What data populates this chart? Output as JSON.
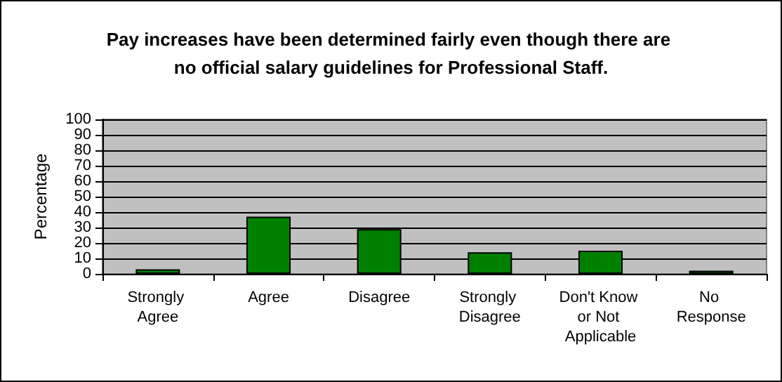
{
  "chart_data": {
    "type": "bar",
    "title": "Pay increases have been determined fairly even though there are no official salary guidelines for Professional Staff.",
    "ylabel": "Percentage",
    "categories": [
      "Strongly Agree",
      "Agree",
      "Disagree",
      "Strongly Disagree",
      "Don't Know or Not Applicable",
      "No Response"
    ],
    "values": [
      3,
      37,
      29,
      14,
      15,
      2
    ],
    "color": "#008000",
    "ylim": [
      0,
      100
    ],
    "yticks": [
      0,
      10,
      20,
      30,
      40,
      50,
      60,
      70,
      80,
      90,
      100
    ],
    "grid": "y"
  }
}
